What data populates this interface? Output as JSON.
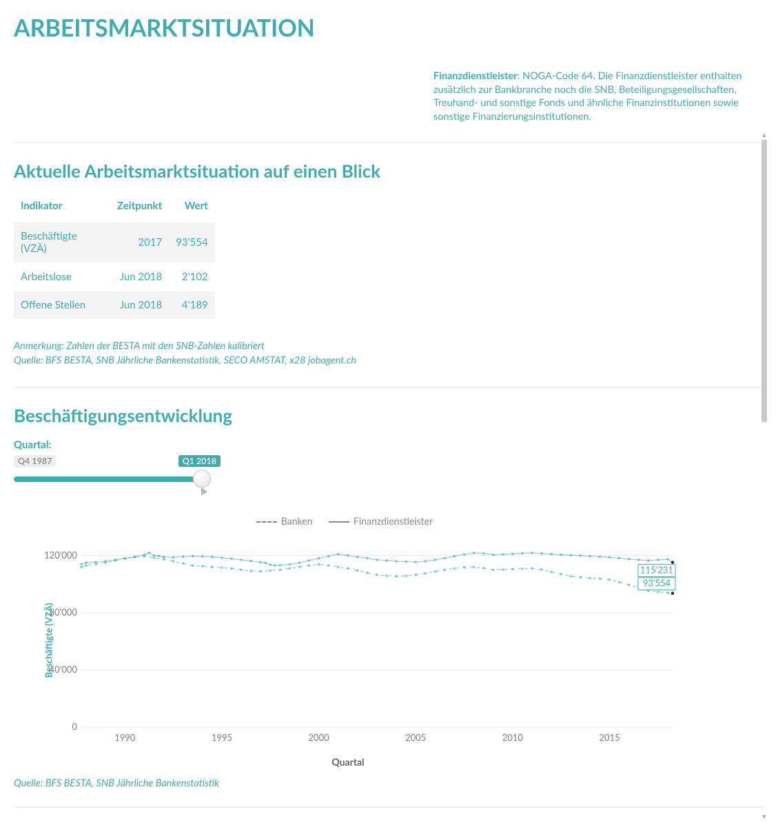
{
  "page": {
    "title": "ARBEITSMARKTSITUATION"
  },
  "intro": {
    "lead": "Finanzdienstleister",
    "body": ": NOGA-Code 64. Die Finanzdienstleister enthalten zusätzlich zur Bankbranche noch die SNB, Beteiligungsgesellschaften, Treuhand- und sonstige Fonds und ähnliche Finanzinstitutionen sowie sonstige Finanzierungsinstitutionen."
  },
  "summary": {
    "title": "Aktuelle Arbeitsmarktsituation auf einen Blick",
    "columns": [
      "Indikator",
      "Zeitpunkt",
      "Wert"
    ],
    "rows": [
      {
        "indicator": "Beschäftigte (VZÄ)",
        "time": "2017",
        "value": "93'554"
      },
      {
        "indicator": "Arbeitslose",
        "time": "Jun 2018",
        "value": "2'102"
      },
      {
        "indicator": "Offene Stellen",
        "time": "Jun 2018",
        "value": "4'189"
      }
    ],
    "note": "Anmerkung: Zahlen der BESTA mit den SNB-Zahlen kalibriert",
    "source": "Quelle: BFS BESTA, SNB Jährliche Bankenstatistik, SECO AMSTAT, x28 jobagent.ch"
  },
  "employment": {
    "title": "Beschäftigungsentwicklung",
    "slider": {
      "label": "Quartal:",
      "start": "Q4 1987",
      "end": "Q1 2018"
    },
    "chart": {
      "type": "line",
      "yaxis_title": "Beschäftigte (VZÄ)",
      "xaxis_title": "Quartal",
      "legend": [
        {
          "label": "Banken",
          "style": "dashed"
        },
        {
          "label": "Finanzdienstleister",
          "style": "solid"
        }
      ],
      "ylim": [
        0,
        130000
      ],
      "yticks": [
        0,
        40000,
        80000,
        120000
      ],
      "ytick_labels": [
        "0",
        "40'000",
        "80'000",
        "120'000"
      ],
      "x_range": [
        1987.75,
        2018.25
      ],
      "xticks": [
        1990,
        1995,
        2000,
        2005,
        2010,
        2015
      ],
      "xtick_labels": [
        "1990",
        "1995",
        "2000",
        "2005",
        "2010",
        "2015"
      ],
      "colors": {
        "series": "#3eadb0",
        "grid": "#e8e8e8",
        "axis_text": "#808080",
        "end_dot": "#222222",
        "background": "#ffffff"
      },
      "line_width": 1.3,
      "dot_radius": 1.8,
      "end_values": {
        "finanzdienstleister": "115'231",
        "banken": "93'554"
      },
      "series": {
        "finanzdienstleister": [
          [
            1987.75,
            114000
          ],
          [
            1988.0,
            115000
          ],
          [
            1988.5,
            115500
          ],
          [
            1989.0,
            116000
          ],
          [
            1989.5,
            117000
          ],
          [
            1990.0,
            118000
          ],
          [
            1990.5,
            119000
          ],
          [
            1991.0,
            120500
          ],
          [
            1991.25,
            122000
          ],
          [
            1991.5,
            120000
          ],
          [
            1991.75,
            119800
          ],
          [
            1992.0,
            119000
          ],
          [
            1992.5,
            118800
          ],
          [
            1993.0,
            119200
          ],
          [
            1993.5,
            119500
          ],
          [
            1994.0,
            119400
          ],
          [
            1994.5,
            119000
          ],
          [
            1995.0,
            118500
          ],
          [
            1995.5,
            117800
          ],
          [
            1996.0,
            117000
          ],
          [
            1996.5,
            116200
          ],
          [
            1997.0,
            115300
          ],
          [
            1997.25,
            114800
          ],
          [
            1997.5,
            113500
          ],
          [
            1997.75,
            113000
          ],
          [
            1998.0,
            113200
          ],
          [
            1998.5,
            113800
          ],
          [
            1999.0,
            115000
          ],
          [
            1999.5,
            116500
          ],
          [
            2000.0,
            118000
          ],
          [
            2000.5,
            119500
          ],
          [
            2001.0,
            121000
          ],
          [
            2001.5,
            120000
          ],
          [
            2002.0,
            119000
          ],
          [
            2002.5,
            118200
          ],
          [
            2003.0,
            117000
          ],
          [
            2003.5,
            116500
          ],
          [
            2004.0,
            116000
          ],
          [
            2004.5,
            115800
          ],
          [
            2005.0,
            115500
          ],
          [
            2005.5,
            116000
          ],
          [
            2006.0,
            117000
          ],
          [
            2006.5,
            118200
          ],
          [
            2007.0,
            119500
          ],
          [
            2007.5,
            120800
          ],
          [
            2008.0,
            121800
          ],
          [
            2008.5,
            121500
          ],
          [
            2009.0,
            120500
          ],
          [
            2009.5,
            120800
          ],
          [
            2010.0,
            121200
          ],
          [
            2010.5,
            121600
          ],
          [
            2011.0,
            121800
          ],
          [
            2011.5,
            121500
          ],
          [
            2012.0,
            121000
          ],
          [
            2012.5,
            120500
          ],
          [
            2013.0,
            120200
          ],
          [
            2013.5,
            120000
          ],
          [
            2014.0,
            119600
          ],
          [
            2014.5,
            119200
          ],
          [
            2015.0,
            118800
          ],
          [
            2015.5,
            118200
          ],
          [
            2016.0,
            117500
          ],
          [
            2016.5,
            117000
          ],
          [
            2017.0,
            116500
          ],
          [
            2017.5,
            117000
          ],
          [
            2018.0,
            117500
          ],
          [
            2018.25,
            115231
          ]
        ],
        "banken": [
          [
            1987.75,
            112000
          ],
          [
            1988.0,
            113000
          ],
          [
            1988.5,
            114000
          ],
          [
            1989.0,
            115000
          ],
          [
            1989.5,
            116500
          ],
          [
            1990.0,
            118000
          ],
          [
            1990.5,
            119000
          ],
          [
            1991.0,
            119500
          ],
          [
            1991.5,
            118500
          ],
          [
            1992.0,
            117500
          ],
          [
            1992.5,
            116000
          ],
          [
            1993.0,
            114500
          ],
          [
            1993.5,
            113000
          ],
          [
            1994.0,
            112500
          ],
          [
            1994.5,
            112000
          ],
          [
            1995.0,
            111500
          ],
          [
            1995.5,
            111000
          ],
          [
            1996.0,
            110000
          ],
          [
            1996.5,
            109200
          ],
          [
            1997.0,
            109000
          ],
          [
            1997.5,
            109500
          ],
          [
            1998.0,
            110000
          ],
          [
            1998.5,
            111000
          ],
          [
            1999.0,
            112000
          ],
          [
            1999.5,
            113000
          ],
          [
            2000.0,
            113800
          ],
          [
            2000.5,
            113000
          ],
          [
            2001.0,
            112000
          ],
          [
            2001.5,
            111000
          ],
          [
            2002.0,
            109500
          ],
          [
            2002.5,
            108000
          ],
          [
            2003.0,
            106500
          ],
          [
            2003.5,
            105800
          ],
          [
            2004.0,
            105500
          ],
          [
            2004.5,
            105800
          ],
          [
            2005.0,
            106500
          ],
          [
            2005.5,
            107500
          ],
          [
            2006.0,
            108800
          ],
          [
            2006.5,
            110000
          ],
          [
            2007.0,
            111000
          ],
          [
            2007.5,
            111800
          ],
          [
            2008.0,
            112000
          ],
          [
            2008.5,
            111200
          ],
          [
            2009.0,
            110000
          ],
          [
            2009.5,
            110200
          ],
          [
            2010.0,
            110500
          ],
          [
            2010.5,
            110800
          ],
          [
            2011.0,
            111000
          ],
          [
            2011.5,
            110200
          ],
          [
            2012.0,
            108500
          ],
          [
            2012.5,
            107000
          ],
          [
            2013.0,
            105500
          ],
          [
            2013.5,
            104800
          ],
          [
            2014.0,
            104200
          ],
          [
            2014.5,
            103800
          ],
          [
            2015.0,
            103200
          ],
          [
            2015.5,
            101500
          ],
          [
            2016.0,
            99500
          ],
          [
            2016.5,
            97500
          ],
          [
            2017.0,
            95500
          ],
          [
            2017.5,
            94500
          ],
          [
            2018.0,
            94000
          ],
          [
            2018.25,
            93554
          ]
        ]
      }
    },
    "source": "Quelle: BFS BESTA, SNB Jährliche Bankenstatistik"
  }
}
